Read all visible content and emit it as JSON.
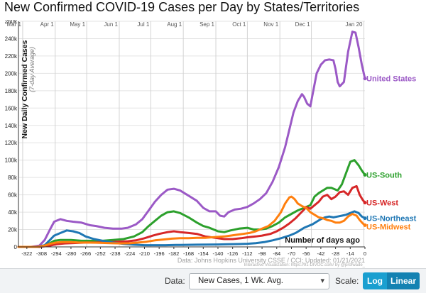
{
  "title": "New Confirmed COVID-19 Cases per Day by States/Territories",
  "controls": {
    "data_label": "Data:",
    "data_value": "New Cases, 1 Wk. Avg.",
    "scale_label": "Scale:",
    "log_label": "Log",
    "linear_label": "Linear"
  },
  "colors": {
    "United States": "#9b59c6",
    "US-South": "#2ca02c",
    "US-West": "#d62728",
    "US-Northeast": "#1f77b4",
    "US-Midwest": "#ff7f0e"
  },
  "chart_data": {
    "type": "line",
    "ylabel": "New Daily Confirmed Cases",
    "ylabel_sub": "(7-day Average)",
    "xlabel": "Number of days ago",
    "source": "Data: Johns Hopkins University CSSE / CCI; Updated: 01/21/2021",
    "credit": "Interactive Visualization: https://91-DIVOC.com/ by @profwade_",
    "xlim": [
      -330,
      0
    ],
    "ylim": [
      0,
      260000
    ],
    "x_ticks": [
      -322,
      -308,
      -294,
      -280,
      -266,
      -252,
      -238,
      -224,
      -210,
      -196,
      -182,
      -168,
      -154,
      -140,
      -126,
      -112,
      -98,
      -84,
      -70,
      -56,
      -42,
      -28,
      -14,
      0
    ],
    "y_ticks": [
      0,
      20000,
      40000,
      60000,
      80000,
      100000,
      120000,
      140000,
      160000,
      180000,
      200000,
      220000,
      240000,
      260000
    ],
    "y_tick_labels": [
      "0",
      "20k",
      "40k",
      "60k",
      "80k",
      "100k",
      "120k",
      "140k",
      "160k",
      "180k",
      "200k",
      "220k",
      "240k",
      "260k"
    ],
    "month_markers": [
      {
        "label": "Mar 1",
        "x": -326
      },
      {
        "label": "Apr 1",
        "x": -295
      },
      {
        "label": "May 1",
        "x": -265
      },
      {
        "label": "Jun 1",
        "x": -234
      },
      {
        "label": "Jul 1",
        "x": -204
      },
      {
        "label": "Aug 1",
        "x": -173
      },
      {
        "label": "Sep 1",
        "x": -142
      },
      {
        "label": "Oct 1",
        "x": -112
      },
      {
        "label": "Nov 1",
        "x": -81
      },
      {
        "label": "Dec 1",
        "x": -51
      },
      {
        "label": "Jan 20",
        "x": -1
      }
    ],
    "series": [
      {
        "name": "United States",
        "points": [
          [
            -330,
            0
          ],
          [
            -318,
            0
          ],
          [
            -310,
            1500
          ],
          [
            -305,
            8000
          ],
          [
            -300,
            20000
          ],
          [
            -296,
            29000
          ],
          [
            -290,
            32000
          ],
          [
            -284,
            30000
          ],
          [
            -278,
            29000
          ],
          [
            -270,
            28000
          ],
          [
            -262,
            25000
          ],
          [
            -256,
            24000
          ],
          [
            -248,
            22000
          ],
          [
            -240,
            21000
          ],
          [
            -232,
            21000
          ],
          [
            -226,
            22000
          ],
          [
            -218,
            26000
          ],
          [
            -212,
            32000
          ],
          [
            -206,
            42000
          ],
          [
            -200,
            52000
          ],
          [
            -194,
            60000
          ],
          [
            -188,
            66000
          ],
          [
            -182,
            67000
          ],
          [
            -176,
            65000
          ],
          [
            -168,
            59000
          ],
          [
            -160,
            53000
          ],
          [
            -154,
            45000
          ],
          [
            -148,
            41000
          ],
          [
            -142,
            41000
          ],
          [
            -138,
            36000
          ],
          [
            -134,
            35000
          ],
          [
            -130,
            40000
          ],
          [
            -124,
            43000
          ],
          [
            -118,
            44000
          ],
          [
            -112,
            46000
          ],
          [
            -106,
            50000
          ],
          [
            -100,
            55000
          ],
          [
            -94,
            62000
          ],
          [
            -88,
            75000
          ],
          [
            -82,
            92000
          ],
          [
            -76,
            115000
          ],
          [
            -72,
            135000
          ],
          [
            -68,
            155000
          ],
          [
            -64,
            168000
          ],
          [
            -60,
            176000
          ],
          [
            -58,
            173000
          ],
          [
            -55,
            165000
          ],
          [
            -52,
            162000
          ],
          [
            -50,
            175000
          ],
          [
            -46,
            200000
          ],
          [
            -42,
            210000
          ],
          [
            -38,
            215000
          ],
          [
            -34,
            216000
          ],
          [
            -30,
            215000
          ],
          [
            -28,
            205000
          ],
          [
            -26,
            190000
          ],
          [
            -24,
            185000
          ],
          [
            -20,
            190000
          ],
          [
            -16,
            225000
          ],
          [
            -12,
            248000
          ],
          [
            -9,
            247000
          ],
          [
            -6,
            230000
          ],
          [
            -3,
            210000
          ],
          [
            0,
            194000
          ]
        ]
      },
      {
        "name": "US-South",
        "points": [
          [
            -330,
            0
          ],
          [
            -310,
            0
          ],
          [
            -302,
            3000
          ],
          [
            -296,
            7000
          ],
          [
            -290,
            8000
          ],
          [
            -280,
            8000
          ],
          [
            -270,
            7000
          ],
          [
            -260,
            7000
          ],
          [
            -250,
            7000
          ],
          [
            -240,
            8000
          ],
          [
            -230,
            9000
          ],
          [
            -220,
            12000
          ],
          [
            -212,
            17000
          ],
          [
            -206,
            24000
          ],
          [
            -200,
            30000
          ],
          [
            -194,
            36000
          ],
          [
            -188,
            40000
          ],
          [
            -182,
            41000
          ],
          [
            -176,
            39000
          ],
          [
            -168,
            34000
          ],
          [
            -160,
            28000
          ],
          [
            -154,
            24000
          ],
          [
            -148,
            22000
          ],
          [
            -140,
            18000
          ],
          [
            -134,
            17000
          ],
          [
            -128,
            19000
          ],
          [
            -120,
            21000
          ],
          [
            -112,
            22000
          ],
          [
            -106,
            20000
          ],
          [
            -100,
            20000
          ],
          [
            -94,
            21000
          ],
          [
            -88,
            24000
          ],
          [
            -82,
            28000
          ],
          [
            -76,
            34000
          ],
          [
            -70,
            38000
          ],
          [
            -64,
            42000
          ],
          [
            -58,
            45000
          ],
          [
            -52,
            48000
          ],
          [
            -48,
            58000
          ],
          [
            -44,
            62000
          ],
          [
            -40,
            65000
          ],
          [
            -36,
            68000
          ],
          [
            -32,
            68000
          ],
          [
            -28,
            66000
          ],
          [
            -26,
            65000
          ],
          [
            -22,
            72000
          ],
          [
            -18,
            85000
          ],
          [
            -14,
            98000
          ],
          [
            -10,
            100000
          ],
          [
            -6,
            94000
          ],
          [
            -3,
            88000
          ],
          [
            0,
            83000
          ]
        ]
      },
      {
        "name": "US-West",
        "points": [
          [
            -330,
            0
          ],
          [
            -310,
            0
          ],
          [
            -300,
            1500
          ],
          [
            -294,
            3000
          ],
          [
            -286,
            4000
          ],
          [
            -276,
            4500
          ],
          [
            -266,
            5000
          ],
          [
            -256,
            5000
          ],
          [
            -246,
            5500
          ],
          [
            -236,
            6000
          ],
          [
            -226,
            6500
          ],
          [
            -218,
            7500
          ],
          [
            -210,
            10000
          ],
          [
            -202,
            13000
          ],
          [
            -196,
            15000
          ],
          [
            -188,
            17000
          ],
          [
            -182,
            18000
          ],
          [
            -176,
            17000
          ],
          [
            -168,
            16000
          ],
          [
            -160,
            15000
          ],
          [
            -152,
            12000
          ],
          [
            -146,
            11000
          ],
          [
            -140,
            10000
          ],
          [
            -134,
            9000
          ],
          [
            -126,
            9000
          ],
          [
            -118,
            10000
          ],
          [
            -112,
            11000
          ],
          [
            -104,
            12000
          ],
          [
            -98,
            13000
          ],
          [
            -90,
            15000
          ],
          [
            -84,
            18000
          ],
          [
            -78,
            22000
          ],
          [
            -72,
            27000
          ],
          [
            -66,
            33000
          ],
          [
            -62,
            38000
          ],
          [
            -58,
            43000
          ],
          [
            -56,
            46000
          ],
          [
            -52,
            44000
          ],
          [
            -48,
            48000
          ],
          [
            -44,
            52000
          ],
          [
            -40,
            58000
          ],
          [
            -36,
            60000
          ],
          [
            -32,
            55000
          ],
          [
            -28,
            58000
          ],
          [
            -24,
            63000
          ],
          [
            -20,
            64000
          ],
          [
            -16,
            60000
          ],
          [
            -12,
            68000
          ],
          [
            -8,
            70000
          ],
          [
            -5,
            60000
          ],
          [
            -2,
            54000
          ],
          [
            0,
            51000
          ]
        ]
      },
      {
        "name": "US-Northeast",
        "points": [
          [
            -330,
            0
          ],
          [
            -312,
            0
          ],
          [
            -305,
            2000
          ],
          [
            -300,
            8000
          ],
          [
            -296,
            13000
          ],
          [
            -290,
            16000
          ],
          [
            -284,
            19000
          ],
          [
            -278,
            18000
          ],
          [
            -272,
            16000
          ],
          [
            -266,
            12000
          ],
          [
            -258,
            9000
          ],
          [
            -250,
            7000
          ],
          [
            -240,
            5000
          ],
          [
            -230,
            3500
          ],
          [
            -220,
            2500
          ],
          [
            -210,
            2000
          ],
          [
            -200,
            2000
          ],
          [
            -190,
            2000
          ],
          [
            -180,
            2200
          ],
          [
            -170,
            2400
          ],
          [
            -160,
            2500
          ],
          [
            -150,
            2600
          ],
          [
            -140,
            2800
          ],
          [
            -130,
            3000
          ],
          [
            -120,
            3300
          ],
          [
            -112,
            3600
          ],
          [
            -104,
            4300
          ],
          [
            -96,
            5500
          ],
          [
            -88,
            7500
          ],
          [
            -80,
            10000
          ],
          [
            -72,
            13000
          ],
          [
            -66,
            16000
          ],
          [
            -62,
            19000
          ],
          [
            -58,
            22000
          ],
          [
            -54,
            24000
          ],
          [
            -50,
            26000
          ],
          [
            -46,
            29000
          ],
          [
            -42,
            32000
          ],
          [
            -38,
            34000
          ],
          [
            -34,
            35000
          ],
          [
            -30,
            34000
          ],
          [
            -26,
            35000
          ],
          [
            -22,
            36000
          ],
          [
            -18,
            37000
          ],
          [
            -14,
            39000
          ],
          [
            -10,
            41000
          ],
          [
            -6,
            39000
          ],
          [
            -3,
            35000
          ],
          [
            0,
            33000
          ]
        ]
      },
      {
        "name": "US-Midwest",
        "points": [
          [
            -330,
            0
          ],
          [
            -312,
            0
          ],
          [
            -305,
            1500
          ],
          [
            -300,
            3500
          ],
          [
            -294,
            5000
          ],
          [
            -288,
            5500
          ],
          [
            -280,
            5500
          ],
          [
            -272,
            5000
          ],
          [
            -264,
            5000
          ],
          [
            -256,
            4800
          ],
          [
            -248,
            4500
          ],
          [
            -240,
            4200
          ],
          [
            -232,
            4000
          ],
          [
            -224,
            4200
          ],
          [
            -216,
            5000
          ],
          [
            -208,
            6000
          ],
          [
            -200,
            7500
          ],
          [
            -192,
            8500
          ],
          [
            -184,
            9500
          ],
          [
            -176,
            10000
          ],
          [
            -168,
            10000
          ],
          [
            -160,
            10500
          ],
          [
            -152,
            10500
          ],
          [
            -146,
            11000
          ],
          [
            -140,
            11500
          ],
          [
            -134,
            12000
          ],
          [
            -128,
            13000
          ],
          [
            -122,
            14000
          ],
          [
            -116,
            15000
          ],
          [
            -110,
            16000
          ],
          [
            -104,
            18000
          ],
          [
            -98,
            21000
          ],
          [
            -92,
            24000
          ],
          [
            -86,
            30000
          ],
          [
            -80,
            40000
          ],
          [
            -76,
            50000
          ],
          [
            -72,
            57000
          ],
          [
            -70,
            58000
          ],
          [
            -67,
            55000
          ],
          [
            -64,
            50000
          ],
          [
            -60,
            47000
          ],
          [
            -56,
            45000
          ],
          [
            -52,
            40000
          ],
          [
            -48,
            37000
          ],
          [
            -44,
            34000
          ],
          [
            -40,
            33000
          ],
          [
            -36,
            31000
          ],
          [
            -32,
            30000
          ],
          [
            -28,
            28000
          ],
          [
            -24,
            28000
          ],
          [
            -20,
            30000
          ],
          [
            -16,
            35000
          ],
          [
            -12,
            38000
          ],
          [
            -8,
            36000
          ],
          [
            -5,
            31000
          ],
          [
            -2,
            27000
          ],
          [
            0,
            25000
          ]
        ]
      }
    ]
  }
}
